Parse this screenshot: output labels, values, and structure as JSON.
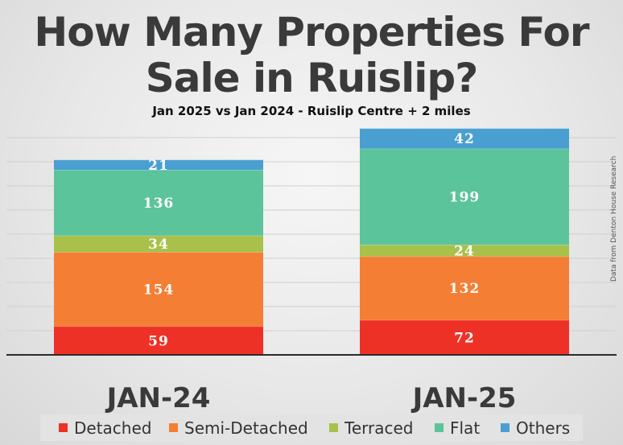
{
  "title": {
    "line1": "How Many Properties For",
    "line2": "Sale in Ruislip?"
  },
  "subtitle": "Jan 2025 vs Jan 2024 - Ruislip Centre + 2 miles",
  "source_note": "Data from Denton House Research",
  "colors": {
    "Detached": "#ee3127",
    "Semi-Detached": "#f47e34",
    "Terraced": "#a7c14a",
    "Flat": "#5cc49b",
    "Others": "#4a9fd1",
    "grid": "#cfcfcf",
    "axis": "#2b2b2b",
    "legend_bg": "#e3e3e3"
  },
  "chart_data": {
    "type": "bar",
    "stacked": true,
    "title": "How Many Properties For Sale in Ruislip?",
    "subtitle": "Jan 2025 vs Jan 2024 - Ruislip Centre + 2 miles",
    "categories": [
      "JAN-24",
      "JAN-25"
    ],
    "series": [
      {
        "name": "Detached",
        "values": [
          59,
          72
        ]
      },
      {
        "name": "Semi-Detached",
        "values": [
          154,
          132
        ]
      },
      {
        "name": "Terraced",
        "values": [
          34,
          24
        ]
      },
      {
        "name": "Flat",
        "values": [
          136,
          199
        ]
      },
      {
        "name": "Others",
        "values": [
          21,
          42
        ]
      }
    ],
    "xlabel": "",
    "ylabel": "",
    "ylim": [
      0,
      500
    ],
    "grid": true,
    "legend_position": "bottom"
  }
}
